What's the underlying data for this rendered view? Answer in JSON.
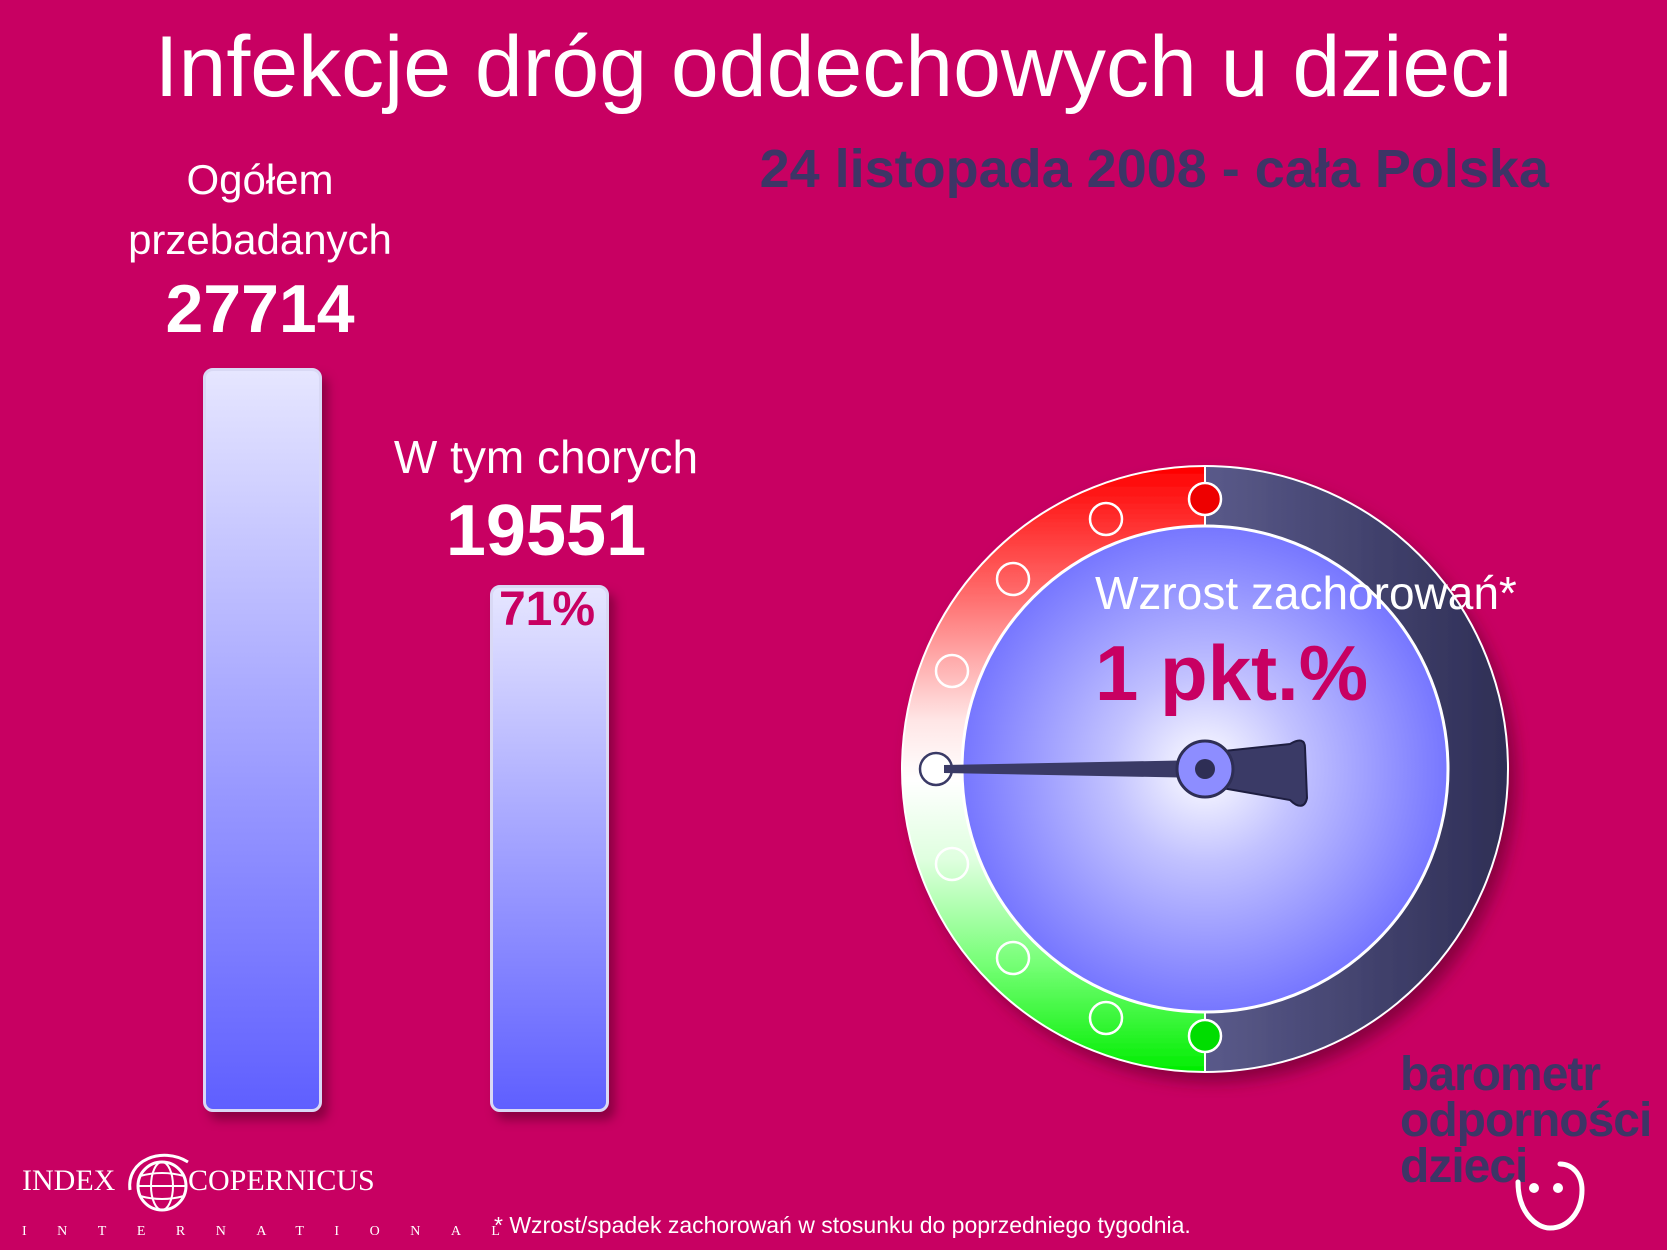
{
  "title": "Infekcje dróg oddechowych u dzieci",
  "subtitle": "24 listopada 2008 - cała Polska",
  "chart_data": [
    {
      "type": "bar",
      "categories": [
        "Ogółem przebadanych",
        "W tym chorych"
      ],
      "values": [
        27714,
        19551
      ],
      "labels": {
        "total_label_line1": "Ogółem",
        "total_label_line2": "przebadanych",
        "total_value": "27714",
        "sick_label": "W tym chorych",
        "sick_value": "19551",
        "sick_percent": "71%"
      },
      "sick_share": 0.71
    },
    {
      "type": "gauge",
      "label": "Wzrost zachorowań*",
      "value_text": "1 pkt.%",
      "needle_position": "left-horizontal",
      "zones": [
        "red (top)",
        "white (middle)",
        "green (bottom)"
      ],
      "colors": {
        "red": "#ff0000",
        "green": "#00ee00",
        "dial": "#6f6fff",
        "ring_dark": "#3a3a66"
      }
    }
  ],
  "footnote": "* Wzrost/spadek zachorowań w stosunku do poprzedniego tygodnia.",
  "brand": {
    "line1": "barometr",
    "line2": "odporności",
    "line3": "dzieci"
  },
  "logo": {
    "word1": "INDEX",
    "word2": "COPERNICUS",
    "sub": "INTERNATIONAL"
  },
  "colors": {
    "background": "#c80062",
    "subtitle": "#3d3566",
    "accent_text": "#c80062"
  }
}
